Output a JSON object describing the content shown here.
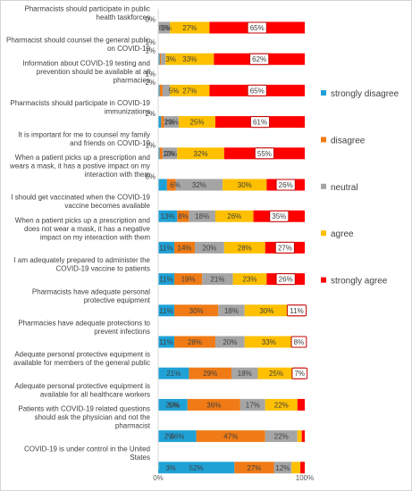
{
  "chart_data": {
    "type": "bar",
    "stacked": true,
    "orientation": "horizontal",
    "title": "",
    "xlabel": "",
    "ylabel": "",
    "xlim": [
      0,
      100
    ],
    "x_ticks": [
      "0%",
      "100%"
    ],
    "grid": false,
    "legend_position": "right",
    "categories": [
      "Pharmacists should participate in public health taskforces",
      "Pharmacist should counsel the general public on COVID-19",
      "Information about COVID-19 testing and prevention should be available at all pharmacies",
      "Pharmacists should participate in COVID-19 immunizations",
      "It is important for me to counsel my family and friends on COVID-19",
      "When a patient picks up a prescription and wears a mask, it has a postive impact on my interaction with them",
      "I should get vaccinated when the COVID-19 vaccine becomes available",
      "When a patient picks up a prescription and does not wear a mask, it has a negative impact on my interaction with them",
      "I am adequately prepared to administer the COVID-19 vaccine to patients",
      "Pharmacists have adequate personal protective equipment",
      "Pharmacies have adequate protections to prevent infections",
      "Adequate personal protective equipment is available for members of the general public",
      "Adequate personal protective equipment is available for all healthcare workers",
      "Patients with COVID-19 related questions should ask the physician and not the pharmacist",
      "COVID-19 is under control in the United States"
    ],
    "series": [
      {
        "name": "strongly disagree",
        "color": "#1fa1d6",
        "values": [
          0,
          1,
          1,
          2,
          1,
          6,
          13,
          11,
          11,
          11,
          11,
          21,
          20,
          26,
          52
        ]
      },
      {
        "name": "disagree",
        "color": "#f07b16",
        "values": [
          0,
          1,
          2,
          2,
          2,
          6,
          8,
          14,
          19,
          30,
          28,
          29,
          36,
          47,
          27
        ]
      },
      {
        "name": "neutral",
        "color": "#a5a5a5",
        "values": [
          8,
          3,
          5,
          10,
          10,
          32,
          18,
          20,
          21,
          18,
          20,
          18,
          17,
          22,
          12
        ]
      },
      {
        "name": "agree",
        "color": "#ffc000",
        "values": [
          27,
          33,
          27,
          25,
          32,
          30,
          26,
          28,
          23,
          30,
          33,
          25,
          22,
          3,
          6
        ]
      },
      {
        "name": "strongly agree",
        "color": "#ff0000",
        "values": [
          65,
          62,
          65,
          61,
          55,
          26,
          35,
          27,
          26,
          11,
          8,
          7,
          5,
          2,
          3
        ]
      }
    ],
    "labels": [
      {
        "strongly disagree": "0%",
        "disagree": "1%",
        "neutral": "8%",
        "agree": "27%",
        "strongly agree": "65%"
      },
      {
        "strongly disagree": "1%",
        "disagree": "1%",
        "neutral": "3%",
        "agree": "33%",
        "strongly agree": "62%"
      },
      {
        "strongly disagree": "1%",
        "disagree": "2%",
        "neutral": "5%",
        "agree": "27%",
        "strongly agree": "65%"
      },
      {
        "strongly disagree": "2%",
        "disagree": "2%",
        "neutral": "10%",
        "agree": "25%",
        "strongly agree": "61%"
      },
      {
        "strongly disagree": "1%",
        "disagree": "2%",
        "neutral": "10%",
        "agree": "32%",
        "strongly agree": "55%"
      },
      {
        "strongly disagree": "6%",
        "disagree": "6%",
        "neutral": "32%",
        "agree": "30%",
        "strongly agree": "26%"
      },
      {
        "strongly disagree": "13%",
        "disagree": "8%",
        "neutral": "18%",
        "agree": "26%",
        "strongly agree": "35%"
      },
      {
        "strongly disagree": "11%",
        "disagree": "14%",
        "neutral": "20%",
        "agree": "28%",
        "strongly agree": "27%"
      },
      {
        "strongly disagree": "11%",
        "disagree": "19%",
        "neutral": "21%",
        "agree": "23%",
        "strongly agree": "26%"
      },
      {
        "strongly disagree": "11%",
        "disagree": "30%",
        "neutral": "18%",
        "agree": "30%",
        "strongly agree": "11%"
      },
      {
        "strongly disagree": "11%",
        "disagree": "28%",
        "neutral": "20%",
        "agree": "33%",
        "strongly agree": "8%"
      },
      {
        "strongly disagree": "21%",
        "disagree": "29%",
        "neutral": "18%",
        "agree": "25%",
        "strongly agree": "7%"
      },
      {
        "strongly disagree": "20%",
        "disagree": "36%",
        "neutral": "17%",
        "agree": "22%",
        "strongly agree": "5%"
      },
      {
        "strongly disagree": "26%",
        "disagree": "47%",
        "neutral": "22%",
        "agree": "",
        "strongly agree": "2%"
      },
      {
        "strongly disagree": "52%",
        "disagree": "27%",
        "neutral": "12%",
        "agree": "",
        "strongly agree": "3%"
      }
    ]
  }
}
